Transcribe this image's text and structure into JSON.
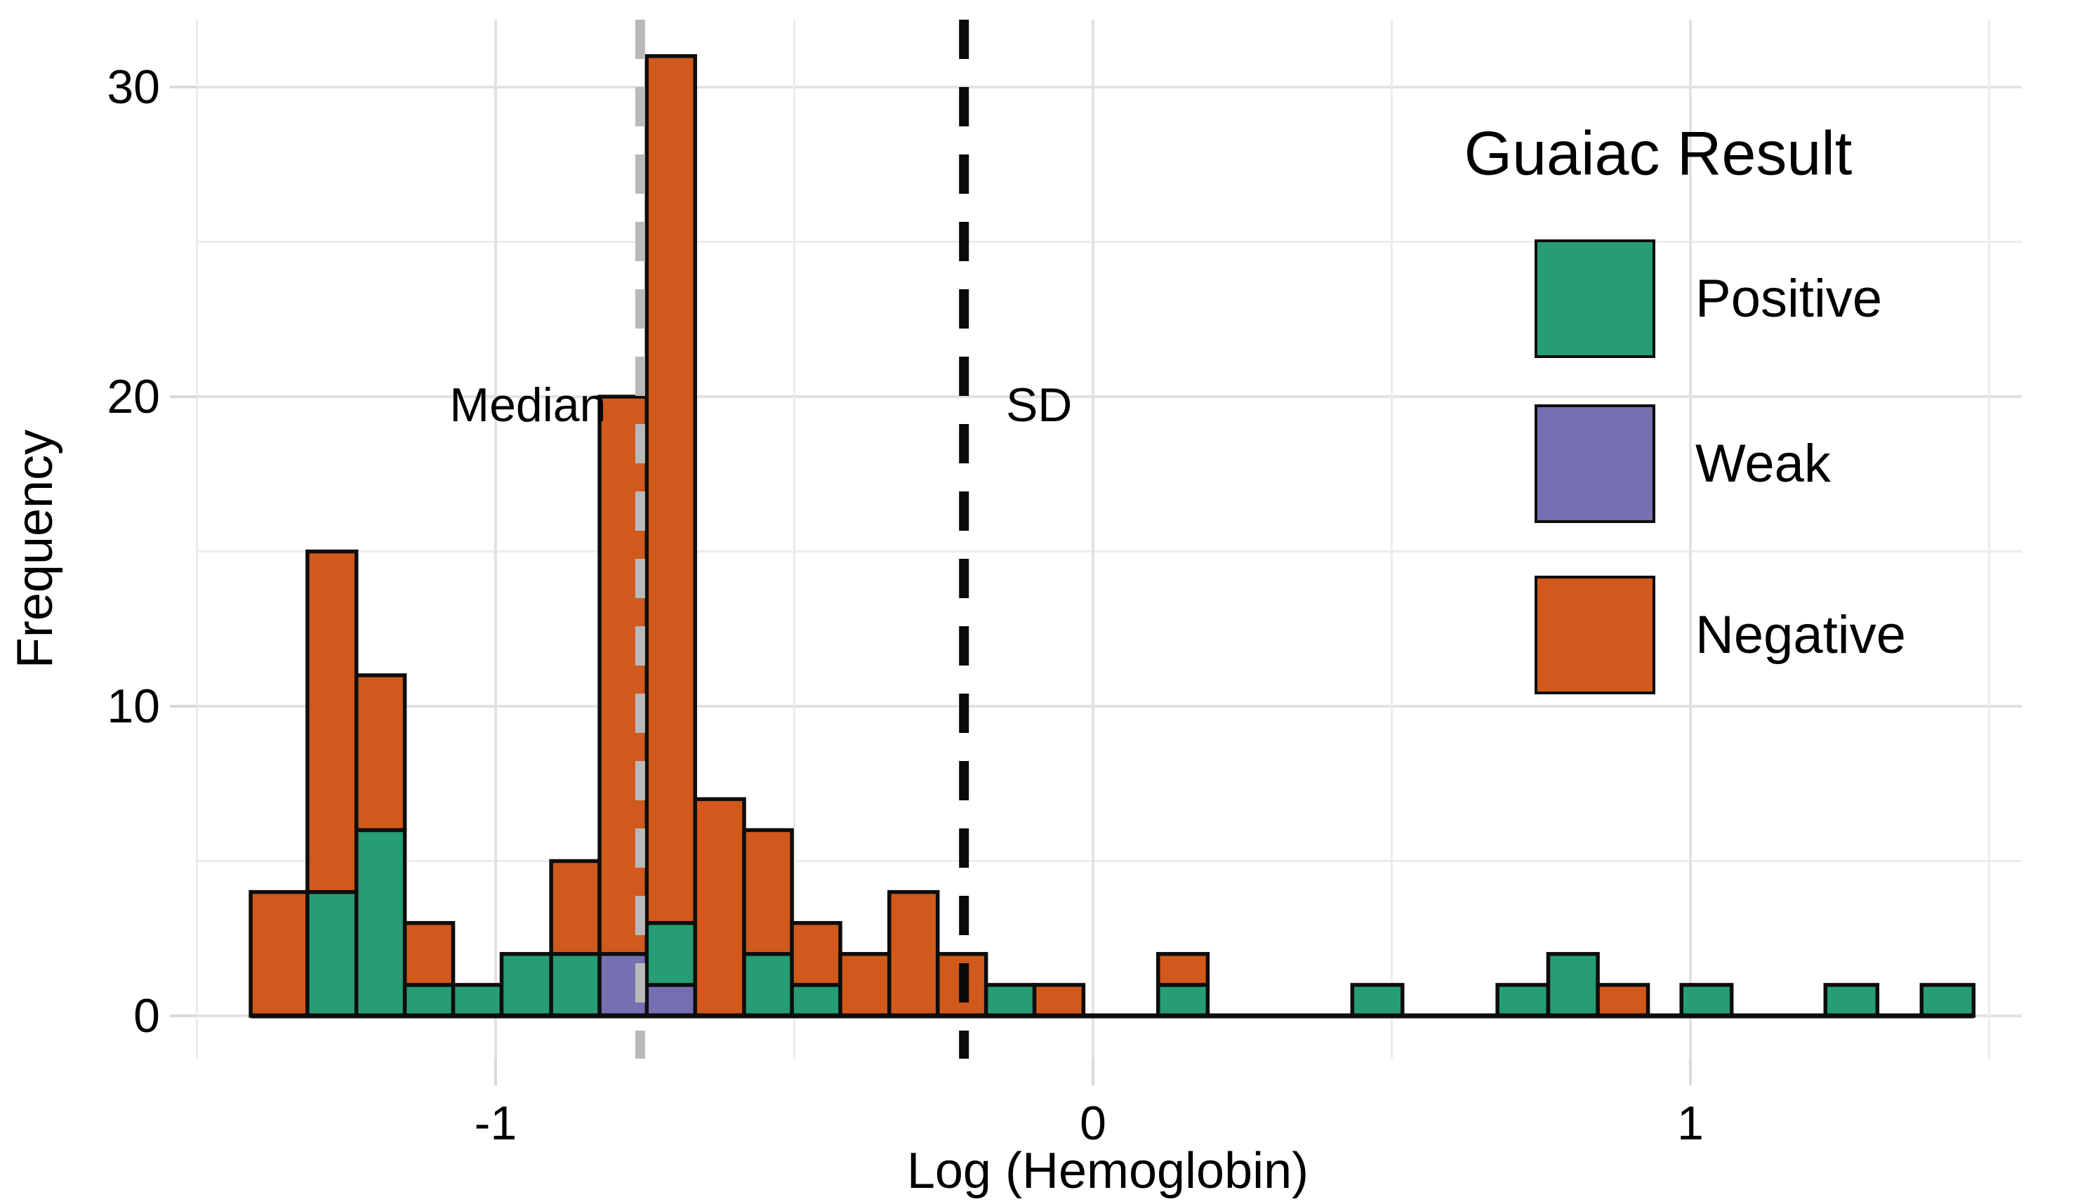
{
  "chart_data": {
    "type": "bar",
    "subtype": "stacked-histogram",
    "title": "",
    "xlabel": "Log (Hemoglobin)",
    "ylabel": "Frequency",
    "xlim": [
      -1.513,
      1.557
    ],
    "ylim": [
      -1.4,
      32.2
    ],
    "grid": true,
    "x_ticks": [
      -1,
      0,
      1
    ],
    "x_tick_labels": [
      "-1",
      "0",
      "1"
    ],
    "x_minor_gridlines": [
      -1.5,
      -0.5,
      0.5,
      1.5
    ],
    "y_ticks": [
      0,
      10,
      20,
      30
    ],
    "y_tick_labels": [
      "0",
      "10",
      "20",
      "30"
    ],
    "y_minor_gridlines": [
      5,
      15,
      25
    ],
    "stack_order_bottom_to_top": [
      "weak",
      "positive",
      "negative"
    ],
    "colors": {
      "positive": "#279D75",
      "weak": "#7570B2",
      "negative": "#D1591C",
      "bar_outline": "#0d0d0d",
      "grid_major": "#e2e2e2",
      "grid_minor": "#ececec",
      "tick": "#d9d9d9",
      "baseline": "#0d0d0d"
    },
    "bins": [
      {
        "x0": -1.41,
        "x1": -1.315,
        "weak": 0,
        "positive": 0,
        "negative": 4
      },
      {
        "x0": -1.315,
        "x1": -1.233,
        "weak": 0,
        "positive": 4,
        "negative": 11
      },
      {
        "x0": -1.233,
        "x1": -1.152,
        "weak": 0,
        "positive": 6,
        "negative": 5
      },
      {
        "x0": -1.152,
        "x1": -1.071,
        "weak": 0,
        "positive": 1,
        "negative": 2
      },
      {
        "x0": -1.071,
        "x1": -0.99,
        "weak": 0,
        "positive": 1,
        "negative": 0
      },
      {
        "x0": -0.99,
        "x1": -0.907,
        "weak": 0,
        "positive": 2,
        "negative": 0
      },
      {
        "x0": -0.907,
        "x1": -0.826,
        "weak": 0,
        "positive": 2,
        "negative": 3
      },
      {
        "x0": -0.826,
        "x1": -0.747,
        "weak": 2,
        "positive": 0,
        "negative": 18
      },
      {
        "x0": -0.747,
        "x1": -0.666,
        "weak": 1,
        "positive": 2,
        "negative": 28
      },
      {
        "x0": -0.666,
        "x1": -0.584,
        "weak": 0,
        "positive": 0,
        "negative": 7
      },
      {
        "x0": -0.584,
        "x1": -0.504,
        "weak": 0,
        "positive": 2,
        "negative": 4
      },
      {
        "x0": -0.504,
        "x1": -0.423,
        "weak": 0,
        "positive": 1,
        "negative": 2
      },
      {
        "x0": -0.423,
        "x1": -0.341,
        "weak": 0,
        "positive": 0,
        "negative": 2
      },
      {
        "x0": -0.341,
        "x1": -0.26,
        "weak": 0,
        "positive": 0,
        "negative": 4
      },
      {
        "x0": -0.26,
        "x1": -0.179,
        "weak": 0,
        "positive": 0,
        "negative": 2
      },
      {
        "x0": -0.179,
        "x1": -0.098,
        "weak": 0,
        "positive": 1,
        "negative": 0
      },
      {
        "x0": -0.098,
        "x1": -0.016,
        "weak": 0,
        "positive": 0,
        "negative": 1
      },
      {
        "x0": 0.109,
        "x1": 0.192,
        "weak": 0,
        "positive": 1,
        "negative": 1
      },
      {
        "x0": 0.434,
        "x1": 0.518,
        "weak": 0,
        "positive": 1,
        "negative": 0
      },
      {
        "x0": 0.677,
        "x1": 0.762,
        "weak": 0,
        "positive": 1,
        "negative": 0
      },
      {
        "x0": 0.762,
        "x1": 0.845,
        "weak": 0,
        "positive": 2,
        "negative": 0
      },
      {
        "x0": 0.845,
        "x1": 0.929,
        "weak": 0,
        "positive": 0,
        "negative": 1
      },
      {
        "x0": 0.985,
        "x1": 1.069,
        "weak": 0,
        "positive": 1,
        "negative": 0
      },
      {
        "x0": 1.226,
        "x1": 1.313,
        "weak": 0,
        "positive": 1,
        "negative": 0
      },
      {
        "x0": 1.387,
        "x1": 1.474,
        "weak": 0,
        "positive": 1,
        "negative": 0
      }
    ],
    "vlines": [
      {
        "label": "Median",
        "x": -0.758,
        "color": "#b9b9b9",
        "style": "dashed",
        "label_side": "left"
      },
      {
        "label": "SD",
        "x": -0.216,
        "color": "#0a0a0a",
        "style": "dashed",
        "label_side": "right"
      }
    ],
    "legend": {
      "title": "Guaiac Result",
      "position": "upper-right-inside",
      "items": [
        {
          "label": "Positive",
          "key": "positive",
          "color": "#279D75"
        },
        {
          "label": "Weak",
          "key": "weak",
          "color": "#7570B2"
        },
        {
          "label": "Negative",
          "key": "negative",
          "color": "#D1591C"
        }
      ]
    }
  }
}
